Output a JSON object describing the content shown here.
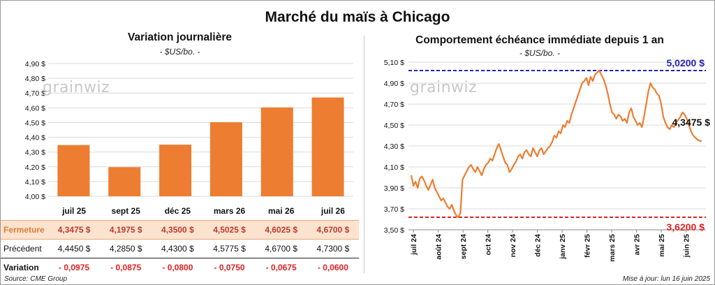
{
  "title": "Marché du maïs à Chicago",
  "left_panel": {
    "title": "Variation journalière",
    "unit": "- $US/bo. -",
    "watermark": "grainwiz"
  },
  "right_panel": {
    "title": "Comportement échéance immédiate depuis 1 an",
    "unit": "- $US/bo. -",
    "watermark": "grainwiz",
    "annotations": {
      "max": "5,0200 $",
      "min": "3,6200 $",
      "last": "4,3475 $"
    }
  },
  "table": {
    "rows": [
      {
        "label": "Fermeture",
        "values": [
          "4,3475  $",
          "4,1975  $",
          "4,3500  $",
          "4,5025  $",
          "4,6025  $",
          "4,6700  $"
        ]
      },
      {
        "label": "Précédent",
        "values": [
          "4,4450  $",
          "4,2850  $",
          "4,4300  $",
          "4,5775  $",
          "4,6700  $",
          "4,7300  $"
        ]
      },
      {
        "label": "Variation",
        "values": [
          "- 0,0975",
          "- 0,0875",
          "- 0,0800",
          "- 0,0750",
          "- 0,0675",
          "- 0,0600"
        ]
      }
    ]
  },
  "footer": {
    "source": "Source: CME Group",
    "updated": "Mise à jour: lun 16 juin 2025"
  },
  "colors": {
    "bar": "#ed7d31",
    "line": "#ed7d31",
    "max_line": "#2222bb",
    "min_line": "#e02020"
  },
  "chart_data": [
    {
      "type": "bar",
      "title": "Variation journalière",
      "categories": [
        "juil 25",
        "sept 25",
        "déc 25",
        "mars 26",
        "mai 26",
        "juil 26"
      ],
      "values": [
        4.3475,
        4.1975,
        4.35,
        4.5025,
        4.6025,
        4.67
      ],
      "ylim": [
        4.0,
        4.9
      ],
      "yticks": [
        "4,00 $",
        "4,10 $",
        "4,20 $",
        "4,30 $",
        "4,40 $",
        "4,50 $",
        "4,60 $",
        "4,70 $",
        "4,80 $",
        "4,90 $"
      ],
      "grid": true
    },
    {
      "type": "line",
      "title": "Comportement échéance immédiate depuis 1 an",
      "x_start": "2024-06-17",
      "x_end": "2025-06-16",
      "xticks": [
        "juil 24",
        "août 24",
        "sept 24",
        "oct 24",
        "nov 24",
        "déc 24",
        "janv 25",
        "févr 25",
        "mars 25",
        "avr 25",
        "mai 25",
        "juin 25"
      ],
      "ylim": [
        3.5,
        5.1
      ],
      "yticks": [
        "3,50 $",
        "3,70 $",
        "3,90 $",
        "4,10 $",
        "4,30 $",
        "4,50 $",
        "4,70 $",
        "4,90 $",
        "5,10 $"
      ],
      "max_value": 5.02,
      "min_value": 3.62,
      "series": [
        {
          "values": [
            4.02,
            3.92,
            3.96,
            3.9,
            3.99,
            4.01,
            3.97,
            3.92,
            3.88,
            3.93,
            3.98,
            3.9,
            3.86,
            3.82,
            3.78,
            3.8,
            3.76,
            3.72,
            3.7,
            3.74,
            3.68,
            3.64,
            3.62,
            3.66,
            3.98,
            4.02,
            4.06,
            4.1,
            4.12,
            4.08,
            4.05,
            4.1,
            4.06,
            4.02,
            4.08,
            4.12,
            4.14,
            4.18,
            4.16,
            4.22,
            4.28,
            4.32,
            4.26,
            4.2,
            4.14,
            4.12,
            4.05,
            4.08,
            4.12,
            4.15,
            4.2,
            4.22,
            4.18,
            4.24,
            4.26,
            4.22,
            4.2,
            4.28,
            4.24,
            4.2,
            4.26,
            4.28,
            4.22,
            4.25,
            4.28,
            4.3,
            4.34,
            4.4,
            4.38,
            4.44,
            4.42,
            4.5,
            4.48,
            4.54,
            4.52,
            4.6,
            4.66,
            4.72,
            4.78,
            4.84,
            4.9,
            4.92,
            4.95,
            4.88,
            4.96,
            4.92,
            4.98,
            5.0,
            5.02,
            4.98,
            4.94,
            4.88,
            4.8,
            4.7,
            4.62,
            4.6,
            4.56,
            4.6,
            4.58,
            4.54,
            4.56,
            4.52,
            4.62,
            4.66,
            4.58,
            4.54,
            4.5,
            4.52,
            4.48,
            4.58,
            4.7,
            4.82,
            4.9,
            4.86,
            4.84,
            4.8,
            4.78,
            4.7,
            4.58,
            4.52,
            4.48,
            4.46,
            4.5,
            4.48,
            4.52,
            4.55,
            4.58,
            4.62,
            4.6,
            4.56,
            4.5,
            4.44,
            4.4,
            4.38,
            4.36,
            4.35,
            4.3475
          ]
        }
      ],
      "grid": true
    }
  ]
}
